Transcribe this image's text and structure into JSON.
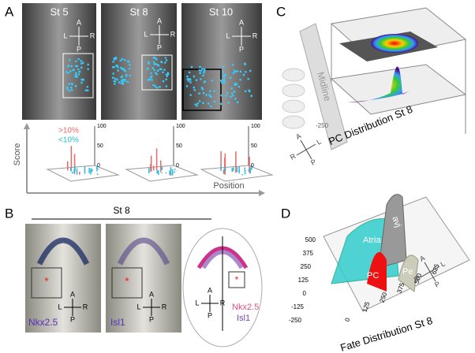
{
  "panels": {
    "a": {
      "label": "A",
      "stages": [
        "St 5",
        "St 8",
        "St 10"
      ],
      "compass": [
        "A",
        "L",
        "R",
        "P"
      ],
      "plot": {
        "y_label": "Score",
        "x_label": "Position",
        "legend": [
          ">10%",
          "<10%"
        ],
        "zticks": [
          "100",
          "50",
          "0"
        ]
      }
    },
    "b": {
      "label": "B",
      "title": "St 8",
      "images": [
        "Nkx2.5",
        "Isl1"
      ],
      "compass": [
        "A",
        "L",
        "R",
        "P"
      ],
      "schematic": [
        "Nkx2.5",
        "Isl1"
      ]
    },
    "c": {
      "label": "C",
      "midline": "Midline",
      "tick": "-250",
      "compass": [
        "A",
        "R",
        "L",
        "P"
      ],
      "caption": "PC Distribution St 8"
    },
    "d": {
      "label": "D",
      "regions": [
        "Atria",
        "avj",
        "Pe",
        "PC"
      ],
      "yticks": [
        "500",
        "375",
        "250",
        "125",
        "0",
        "-125",
        "-250"
      ],
      "xticks": [
        "0",
        "125",
        "250",
        "375",
        "500",
        "625"
      ],
      "compass": [
        "A",
        "R",
        "L",
        "P"
      ],
      "caption": "Fate Distribution St 8"
    }
  }
}
